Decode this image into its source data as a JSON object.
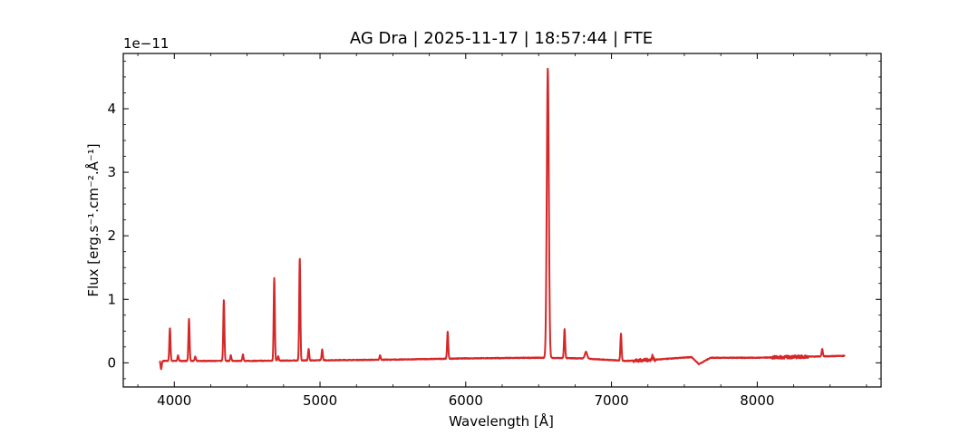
{
  "chart_data": {
    "type": "line",
    "title": "AG Dra | 2025-11-17 | 18:57:44 | FTE",
    "xlabel": "Wavelength [Å]",
    "ylabel": "Flux [erg.s⁻¹.cm⁻².Å⁻¹]",
    "y_offset_text": "1e−11",
    "xlim": [
      3650,
      8850
    ],
    "ylim": [
      -0.38,
      4.87
    ],
    "x_ticks": [
      4000,
      5000,
      6000,
      7000,
      8000
    ],
    "x_tick_labels": [
      "4000",
      "5000",
      "6000",
      "7000",
      "8000"
    ],
    "y_ticks": [
      0,
      1,
      2,
      3,
      4
    ],
    "y_tick_labels": [
      "0",
      "1",
      "2",
      "3",
      "4"
    ],
    "grid": false,
    "series": [
      {
        "color": "#d62728",
        "continuum": [
          [
            3900,
            0.03
          ],
          [
            4500,
            0.03
          ],
          [
            5000,
            0.04
          ],
          [
            5500,
            0.05
          ],
          [
            6000,
            0.07
          ],
          [
            6500,
            0.08
          ],
          [
            6800,
            0.07
          ],
          [
            7100,
            0.03
          ],
          [
            7300,
            0.05
          ],
          [
            7550,
            0.09
          ],
          [
            7600,
            -0.02
          ],
          [
            7680,
            0.08
          ],
          [
            8000,
            0.08
          ],
          [
            8600,
            0.11
          ]
        ],
        "lines": [
          {
            "x": 3970,
            "peak": 0.55,
            "width": 4
          },
          {
            "x": 4101,
            "peak": 0.69,
            "width": 4
          },
          {
            "x": 4340,
            "peak": 0.99,
            "width": 4
          },
          {
            "x": 4686,
            "peak": 1.34,
            "width": 4
          },
          {
            "x": 4861,
            "peak": 1.65,
            "width": 4
          },
          {
            "x": 4922,
            "peak": 0.22,
            "width": 4
          },
          {
            "x": 5015,
            "peak": 0.21,
            "width": 4
          },
          {
            "x": 5412,
            "peak": 0.12,
            "width": 4
          },
          {
            "x": 5876,
            "peak": 0.49,
            "width": 4
          },
          {
            "x": 6563,
            "peak": 4.64,
            "width": 7
          },
          {
            "x": 6678,
            "peak": 0.53,
            "width": 4
          },
          {
            "x": 6825,
            "peak": 0.17,
            "width": 8
          },
          {
            "x": 7065,
            "peak": 0.46,
            "width": 4
          },
          {
            "x": 7281,
            "peak": 0.11,
            "width": 4
          },
          {
            "x": 8446,
            "peak": 0.22,
            "width": 4
          },
          {
            "x": 4026,
            "peak": 0.12,
            "width": 4
          },
          {
            "x": 4144,
            "peak": 0.1,
            "width": 4
          },
          {
            "x": 4388,
            "peak": 0.12,
            "width": 4
          },
          {
            "x": 4471,
            "peak": 0.13,
            "width": 4
          },
          {
            "x": 4713,
            "peak": 0.1,
            "width": 4
          }
        ],
        "dips": [
          {
            "x": 3910,
            "depth": -0.13,
            "width": 4
          }
        ]
      }
    ]
  }
}
